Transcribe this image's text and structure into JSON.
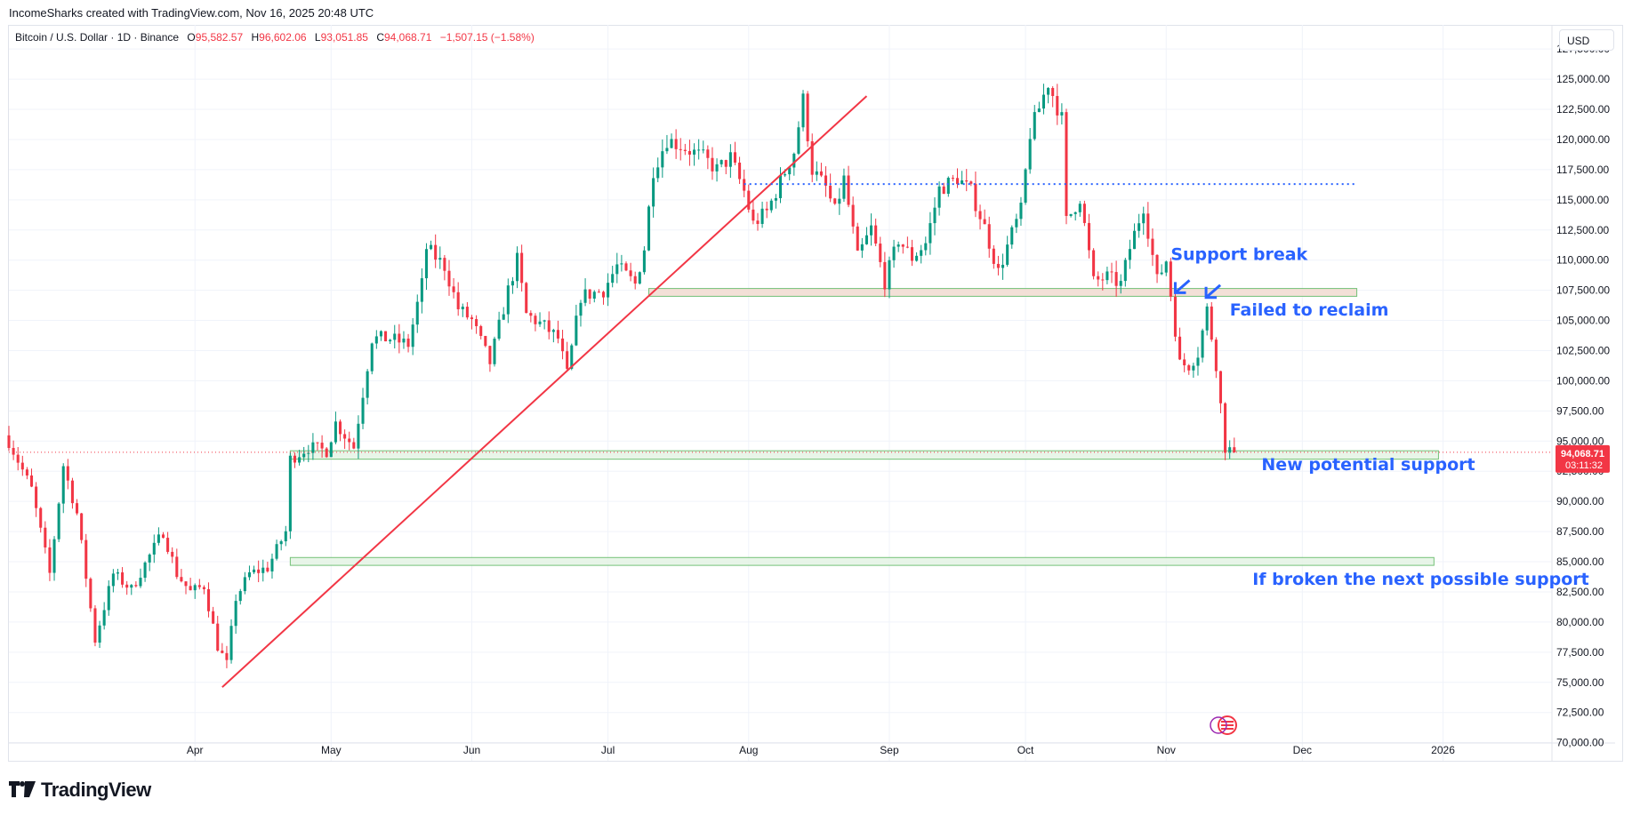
{
  "header": {
    "credit": "IncomeSharks created with TradingView.com, Nov 16, 2025 20:48 UTC"
  },
  "legend": {
    "symbol": "Bitcoin / U.S. Dollar · 1D · Binance",
    "open_label": "O",
    "open": "95,582.57",
    "high_label": "H",
    "high": "96,602.06",
    "low_label": "L",
    "low": "93,051.85",
    "close_label": "C",
    "close": "94,068.71",
    "change": "−1,507.15 (−1.58%)"
  },
  "currency_button": "USD",
  "footer": {
    "brand": "TradingView"
  },
  "price_tag": {
    "price": "94,068.71",
    "countdown": "03:11:32",
    "color": "#f23645"
  },
  "colors": {
    "up": "#089981",
    "down": "#f23645",
    "annotation": "#2962ff",
    "trendline": "#f23645",
    "zone_fill": "#e6f4e6",
    "zone_border": "#66bb6a",
    "resistance_zone_fill": "#f2ddd3"
  },
  "icons": [
    "tradingview-logo-icon",
    "arrow-down-left-icon",
    "event-flag-icon"
  ],
  "chart_data": {
    "type": "candlestick",
    "title": "Bitcoin / U.S. Dollar · 1D · Binance",
    "ylim": [
      68500,
      129500
    ],
    "y_ticks": [
      "127,500.00",
      "125,000.00",
      "122,500.00",
      "120,000.00",
      "117,500.00",
      "115,000.00",
      "112,500.00",
      "110,000.00",
      "107,500.00",
      "105,000.00",
      "102,500.00",
      "100,000.00",
      "97,500.00",
      "95,000.00",
      "92,500.00",
      "90,000.00",
      "87,500.00",
      "85,000.00",
      "82,500.00",
      "80,000.00",
      "77,500.00",
      "75,000.00",
      "72,500.00",
      "70,000.00"
    ],
    "x_ticks": [
      {
        "label": "Apr",
        "date": "2025-04-01"
      },
      {
        "label": "May",
        "date": "2025-05-01"
      },
      {
        "label": "Jun",
        "date": "2025-06-01"
      },
      {
        "label": "Jul",
        "date": "2025-07-01"
      },
      {
        "label": "Aug",
        "date": "2025-08-01"
      },
      {
        "label": "Sep",
        "date": "2025-09-01"
      },
      {
        "label": "Oct",
        "date": "2025-10-01"
      },
      {
        "label": "Nov",
        "date": "2025-11-01"
      },
      {
        "label": "Dec",
        "date": "2025-12-01"
      },
      {
        "label": "2026",
        "date": "2026-01-01"
      }
    ],
    "xlim": [
      "2025-02-19",
      "2026-01-25"
    ],
    "path": [
      [
        "2025-02-19",
        95000
      ],
      [
        "2025-02-24",
        91000
      ],
      [
        "2025-02-28",
        84000
      ],
      [
        "2025-03-03",
        93000
      ],
      [
        "2025-03-06",
        89000
      ],
      [
        "2025-03-10",
        78500
      ],
      [
        "2025-03-14",
        84000
      ],
      [
        "2025-03-18",
        82700
      ],
      [
        "2025-03-22",
        85500
      ],
      [
        "2025-03-25",
        87500
      ],
      [
        "2025-03-28",
        84000
      ],
      [
        "2025-03-31",
        82500
      ],
      [
        "2025-04-03",
        83000
      ],
      [
        "2025-04-06",
        78000
      ],
      [
        "2025-04-08",
        76500
      ],
      [
        "2025-04-10",
        82000
      ],
      [
        "2025-04-13",
        84000
      ],
      [
        "2025-04-17",
        84500
      ],
      [
        "2025-04-21",
        87500
      ],
      [
        "2025-04-22",
        93500
      ],
      [
        "2025-04-26",
        94500
      ],
      [
        "2025-04-30",
        94200
      ],
      [
        "2025-05-02",
        96500
      ],
      [
        "2025-05-06",
        94500
      ],
      [
        "2025-05-08",
        99000
      ],
      [
        "2025-05-10",
        103500
      ],
      [
        "2025-05-14",
        103500
      ],
      [
        "2025-05-18",
        103000
      ],
      [
        "2025-05-21",
        108000
      ],
      [
        "2025-05-22",
        111000
      ],
      [
        "2025-05-26",
        109500
      ],
      [
        "2025-05-29",
        106000
      ],
      [
        "2025-06-01",
        105000
      ],
      [
        "2025-06-05",
        101500
      ],
      [
        "2025-06-09",
        107500
      ],
      [
        "2025-06-11",
        110000
      ],
      [
        "2025-06-13",
        105500
      ],
      [
        "2025-06-17",
        104500
      ],
      [
        "2025-06-20",
        103500
      ],
      [
        "2025-06-22",
        100500
      ],
      [
        "2025-06-25",
        107000
      ],
      [
        "2025-06-30",
        107500
      ],
      [
        "2025-07-03",
        109500
      ],
      [
        "2025-07-07",
        108000
      ],
      [
        "2025-07-09",
        111000
      ],
      [
        "2025-07-11",
        117500
      ],
      [
        "2025-07-14",
        120000
      ],
      [
        "2025-07-17",
        119500
      ],
      [
        "2025-07-22",
        118500
      ],
      [
        "2025-07-25",
        117500
      ],
      [
        "2025-07-28",
        118500
      ],
      [
        "2025-07-31",
        115700
      ],
      [
        "2025-08-02",
        113000
      ],
      [
        "2025-08-05",
        114000
      ],
      [
        "2025-08-08",
        116500
      ],
      [
        "2025-08-11",
        119000
      ],
      [
        "2025-08-13",
        123300
      ],
      [
        "2025-08-15",
        117500
      ],
      [
        "2025-08-18",
        116000
      ],
      [
        "2025-08-20",
        114000
      ],
      [
        "2025-08-22",
        116700
      ],
      [
        "2025-08-25",
        110200
      ],
      [
        "2025-08-28",
        112600
      ],
      [
        "2025-08-31",
        108200
      ],
      [
        "2025-09-03",
        111700
      ],
      [
        "2025-09-06",
        110200
      ],
      [
        "2025-09-09",
        111400
      ],
      [
        "2025-09-12",
        115900
      ],
      [
        "2025-09-16",
        116800
      ],
      [
        "2025-09-19",
        115700
      ],
      [
        "2025-09-22",
        112700
      ],
      [
        "2025-09-25",
        109000
      ],
      [
        "2025-09-28",
        112200
      ],
      [
        "2025-09-30",
        114100
      ],
      [
        "2025-10-02",
        120500
      ],
      [
        "2025-10-06",
        124700
      ],
      [
        "2025-10-09",
        121700
      ],
      [
        "2025-10-10",
        113200
      ],
      [
        "2025-10-13",
        115200
      ],
      [
        "2025-10-16",
        108200
      ],
      [
        "2025-10-19",
        108600
      ],
      [
        "2025-10-22",
        108000
      ],
      [
        "2025-10-24",
        111000
      ],
      [
        "2025-10-27",
        114500
      ],
      [
        "2025-10-30",
        108300
      ],
      [
        "2025-11-01",
        110000
      ],
      [
        "2025-11-04",
        101400
      ],
      [
        "2025-11-06",
        101300
      ],
      [
        "2025-11-08",
        102300
      ],
      [
        "2025-11-10",
        105900
      ],
      [
        "2025-11-12",
        101400
      ],
      [
        "2025-11-14",
        94500
      ],
      [
        "2025-11-16",
        94068.71
      ]
    ]
  },
  "drawings": {
    "trendline": {
      "from": [
        "2025-04-07",
        74600
      ],
      "to": [
        "2025-08-27",
        123600
      ]
    },
    "resistance_dotted": {
      "from": [
        "2025-07-31",
        116300
      ],
      "to": [
        "2025-12-13",
        116300
      ]
    },
    "zone_resistance_turned": {
      "from": "2025-07-10",
      "to": "2025-12-13",
      "y_low": 107000,
      "y_high": 107650
    },
    "zone_new_support": {
      "from": "2025-04-22",
      "to": "2025-12-31",
      "y_low": 93500,
      "y_high": 94200
    },
    "zone_next_support": {
      "from": "2025-04-22",
      "to": "2025-12-30",
      "y_low": 84700,
      "y_high": 85350
    }
  },
  "annotations": [
    {
      "text": "Support break",
      "date": "2025-11-02",
      "price": 110000
    },
    {
      "text": "Failed to reclaim",
      "date": "2025-11-15",
      "price": 105400
    },
    {
      "text": "New potential support",
      "date": "2025-11-22",
      "price": 92600
    },
    {
      "text": "If broken the next possible support",
      "date": "2025-11-20",
      "price": 83100
    }
  ]
}
